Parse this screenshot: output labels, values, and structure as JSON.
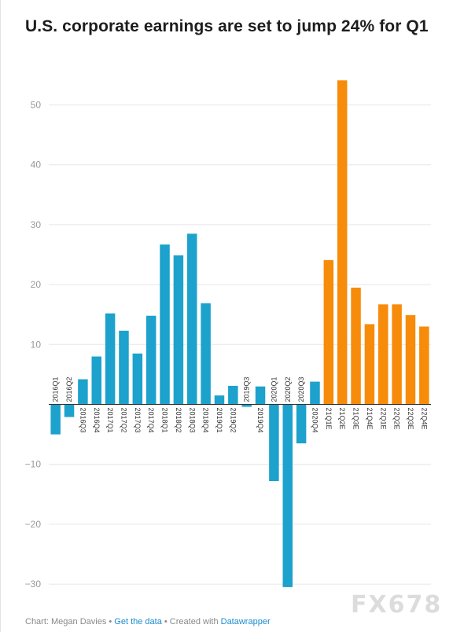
{
  "title": "U.S. corporate earnings are set to jump 24% for Q1",
  "footer": {
    "credit": "Chart: Megan Davies",
    "sep1": " • ",
    "get_data": "Get the data",
    "sep2": " • Created with ",
    "tool": "Datawrapper"
  },
  "watermark": "FX678",
  "colors": {
    "actual": "#1ca2cc",
    "estimate": "#f78b0a",
    "grid": "#e6e6e6",
    "tick_text": "#999999"
  },
  "chart_data": {
    "type": "bar",
    "title": "U.S. corporate earnings are set to jump 24% for Q1",
    "xlabel": "",
    "ylabel": "",
    "ylim": [
      -30.5,
      56
    ],
    "yticks": [
      -30,
      -20,
      -10,
      10,
      20,
      30,
      40,
      50
    ],
    "ytick_labels": [
      "−30",
      "−20",
      "−10",
      "10",
      "20",
      "30",
      "40",
      "50"
    ],
    "grid": true,
    "categories": [
      "2016Q1",
      "2016Q2",
      "2016Q3",
      "2016Q4",
      "2017Q1",
      "2017Q2",
      "2017Q3",
      "2017Q4",
      "2018Q1",
      "2018Q2",
      "2018Q3",
      "2018Q4",
      "2019Q1",
      "2019Q2",
      "2019Q3",
      "2019Q4",
      "2020Q1",
      "2020Q2",
      "2020Q3",
      "2020Q4",
      "21Q1E",
      "21Q2E",
      "21Q3E",
      "21Q4E",
      "22Q1E",
      "22Q2E",
      "22Q3E",
      "22Q4E"
    ],
    "values": [
      -5.0,
      -2.1,
      4.2,
      8.0,
      15.2,
      12.3,
      8.5,
      14.8,
      26.7,
      24.9,
      28.5,
      16.9,
      1.5,
      3.1,
      -0.4,
      3.0,
      -12.8,
      -30.5,
      -6.5,
      3.8,
      24.1,
      54.1,
      19.5,
      13.4,
      16.7,
      16.7,
      14.9,
      13.0
    ],
    "is_estimate": [
      false,
      false,
      false,
      false,
      false,
      false,
      false,
      false,
      false,
      false,
      false,
      false,
      false,
      false,
      false,
      false,
      false,
      false,
      false,
      false,
      true,
      true,
      true,
      true,
      true,
      true,
      true,
      true
    ]
  }
}
